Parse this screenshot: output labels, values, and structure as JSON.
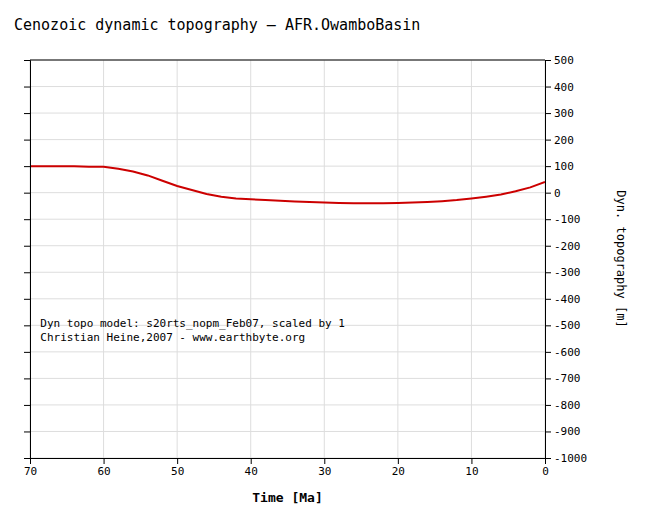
{
  "chart_data": {
    "type": "line",
    "title": "Cenozoic dynamic topography – AFR.OwamboBasin",
    "x_label": "Time [Ma]",
    "y_label": "Dyn. topography [m]",
    "annotations": [
      "Dyn topo model: s20rts_nopm_Feb07, scaled by 1",
      "Christian Heine,2007 - www.earthbyte.org"
    ],
    "x": [
      70,
      68,
      66,
      64,
      62,
      60,
      58,
      56,
      54,
      52,
      50,
      48,
      46,
      44,
      42,
      40,
      38,
      36,
      34,
      32,
      30,
      28,
      26,
      24,
      22,
      20,
      18,
      16,
      14,
      12,
      10,
      8,
      6,
      4,
      2,
      0
    ],
    "values": [
      100,
      100,
      100,
      100,
      98,
      98,
      90,
      80,
      65,
      45,
      25,
      10,
      -5,
      -15,
      -22,
      -25,
      -28,
      -30,
      -33,
      -35,
      -37,
      -39,
      -40,
      -40,
      -40,
      -39,
      -37,
      -35,
      -32,
      -28,
      -22,
      -15,
      -7,
      5,
      20,
      40
    ],
    "color": "#cc0000",
    "xlim": [
      70,
      0
    ],
    "ylim": [
      -1000,
      500
    ],
    "xticks": [
      70,
      60,
      50,
      40,
      30,
      20,
      10,
      0
    ],
    "yticks": [
      500,
      400,
      300,
      200,
      100,
      0,
      -100,
      -200,
      -300,
      -400,
      -500,
      -600,
      -700,
      -800,
      -900,
      -1000
    ],
    "grid": true
  }
}
